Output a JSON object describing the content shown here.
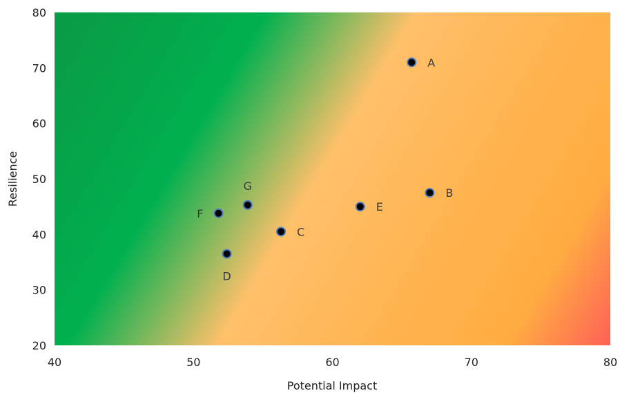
{
  "chart_data": {
    "type": "scatter",
    "xlabel": "Potential Impact",
    "ylabel": "Resilience",
    "xlim": [
      40,
      80
    ],
    "ylim": [
      20,
      80
    ],
    "xticks": [
      40,
      50,
      60,
      70,
      80
    ],
    "yticks": [
      20,
      30,
      40,
      50,
      60,
      70,
      80
    ],
    "grid": false,
    "background": "diagonal gradient: green (top-left) to orange to red (bottom-right)",
    "colors": {
      "green": "#00b04f",
      "dark_green": "#0a9a45",
      "light_orange": "#ffc06a",
      "orange": "#ffad42",
      "red": "#ff6057",
      "point_fill": "#000000",
      "point_stroke": "#4a7bbd"
    },
    "points": [
      {
        "label": "A",
        "x": 65.7,
        "y": 71.0,
        "label_pos": "right"
      },
      {
        "label": "B",
        "x": 67.0,
        "y": 47.5,
        "label_pos": "right"
      },
      {
        "label": "C",
        "x": 56.3,
        "y": 40.5,
        "label_pos": "right"
      },
      {
        "label": "D",
        "x": 52.4,
        "y": 36.5,
        "label_pos": "below"
      },
      {
        "label": "E",
        "x": 62.0,
        "y": 45.0,
        "label_pos": "right"
      },
      {
        "label": "F",
        "x": 51.8,
        "y": 43.8,
        "label_pos": "left"
      },
      {
        "label": "G",
        "x": 53.9,
        "y": 45.3,
        "label_pos": "above"
      }
    ]
  }
}
